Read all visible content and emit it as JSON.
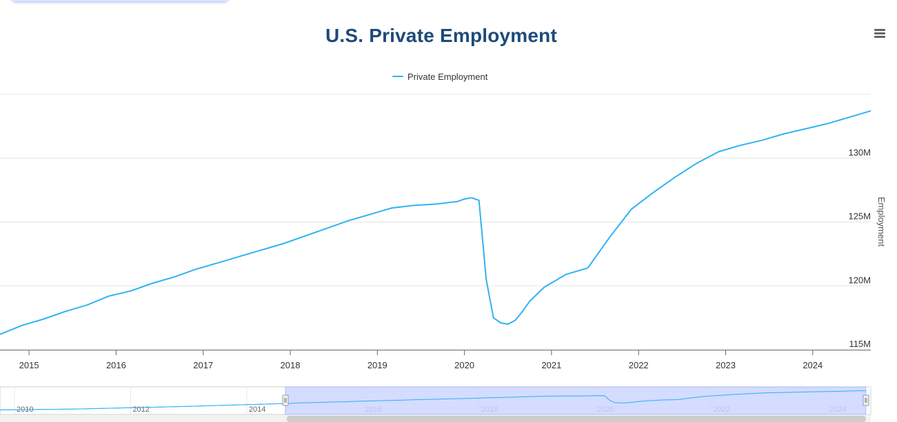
{
  "title": "U.S. Private Employment",
  "menu_icon": "hamburger-menu-icon",
  "legend": {
    "label": "Private Employment",
    "color": "#2fb2f2"
  },
  "colors": {
    "line": "#2fb2f2",
    "title": "#1d4a7a",
    "navigator_mask": "#ccd6ff",
    "grid": "#e6e6e6"
  },
  "chart_data": {
    "type": "line",
    "title": "U.S. Private Employment",
    "ylabel": "Employment",
    "y_tick_labels": [
      "115M",
      "120M",
      "125M",
      "130M"
    ],
    "y_ticks": [
      115,
      120,
      125,
      130
    ],
    "ylim": [
      115,
      135
    ],
    "x_tick_labels": [
      "2015",
      "2016",
      "2017",
      "2018",
      "2019",
      "2020",
      "2021",
      "2022",
      "2023",
      "2024"
    ],
    "xlim": [
      "2014-09",
      "2024-09"
    ],
    "grid": true,
    "legend_position": "top-center",
    "series": [
      {
        "name": "Private Employment",
        "unit": "millions",
        "points": [
          [
            "2014-09",
            116.2
          ],
          [
            "2014-12",
            116.9
          ],
          [
            "2015-03",
            117.4
          ],
          [
            "2015-06",
            118.0
          ],
          [
            "2015-09",
            118.5
          ],
          [
            "2015-12",
            119.2
          ],
          [
            "2016-03",
            119.6
          ],
          [
            "2016-06",
            120.2
          ],
          [
            "2016-09",
            120.7
          ],
          [
            "2016-12",
            121.3
          ],
          [
            "2017-03",
            121.8
          ],
          [
            "2017-06",
            122.3
          ],
          [
            "2017-09",
            122.8
          ],
          [
            "2017-12",
            123.3
          ],
          [
            "2018-03",
            123.9
          ],
          [
            "2018-06",
            124.5
          ],
          [
            "2018-09",
            125.1
          ],
          [
            "2018-12",
            125.6
          ],
          [
            "2019-03",
            126.1
          ],
          [
            "2019-06",
            126.3
          ],
          [
            "2019-09",
            126.4
          ],
          [
            "2019-12",
            126.6
          ],
          [
            "2020-01",
            126.8
          ],
          [
            "2020-02",
            126.9
          ],
          [
            "2020-03",
            126.7
          ],
          [
            "2020-04",
            120.5
          ],
          [
            "2020-05",
            117.5
          ],
          [
            "2020-06",
            117.1
          ],
          [
            "2020-07",
            117.0
          ],
          [
            "2020-08",
            117.3
          ],
          [
            "2020-09",
            118.0
          ],
          [
            "2020-10",
            118.8
          ],
          [
            "2020-12",
            119.9
          ],
          [
            "2021-03",
            120.9
          ],
          [
            "2021-06",
            121.4
          ],
          [
            "2021-09",
            123.8
          ],
          [
            "2021-12",
            126.0
          ],
          [
            "2022-03",
            127.3
          ],
          [
            "2022-06",
            128.5
          ],
          [
            "2022-09",
            129.6
          ],
          [
            "2022-12",
            130.5
          ],
          [
            "2023-03",
            131.0
          ],
          [
            "2023-06",
            131.4
          ],
          [
            "2023-09",
            131.9
          ],
          [
            "2023-12",
            132.3
          ],
          [
            "2024-03",
            132.7
          ],
          [
            "2024-06",
            133.2
          ],
          [
            "2024-09",
            133.7
          ]
        ]
      }
    ],
    "navigator": {
      "x_tick_labels": [
        "2010",
        "2012",
        "2014",
        "2016",
        "2018",
        "2020",
        "2022",
        "2024"
      ],
      "selected_range": [
        "2014-09",
        "2024-09"
      ]
    }
  }
}
